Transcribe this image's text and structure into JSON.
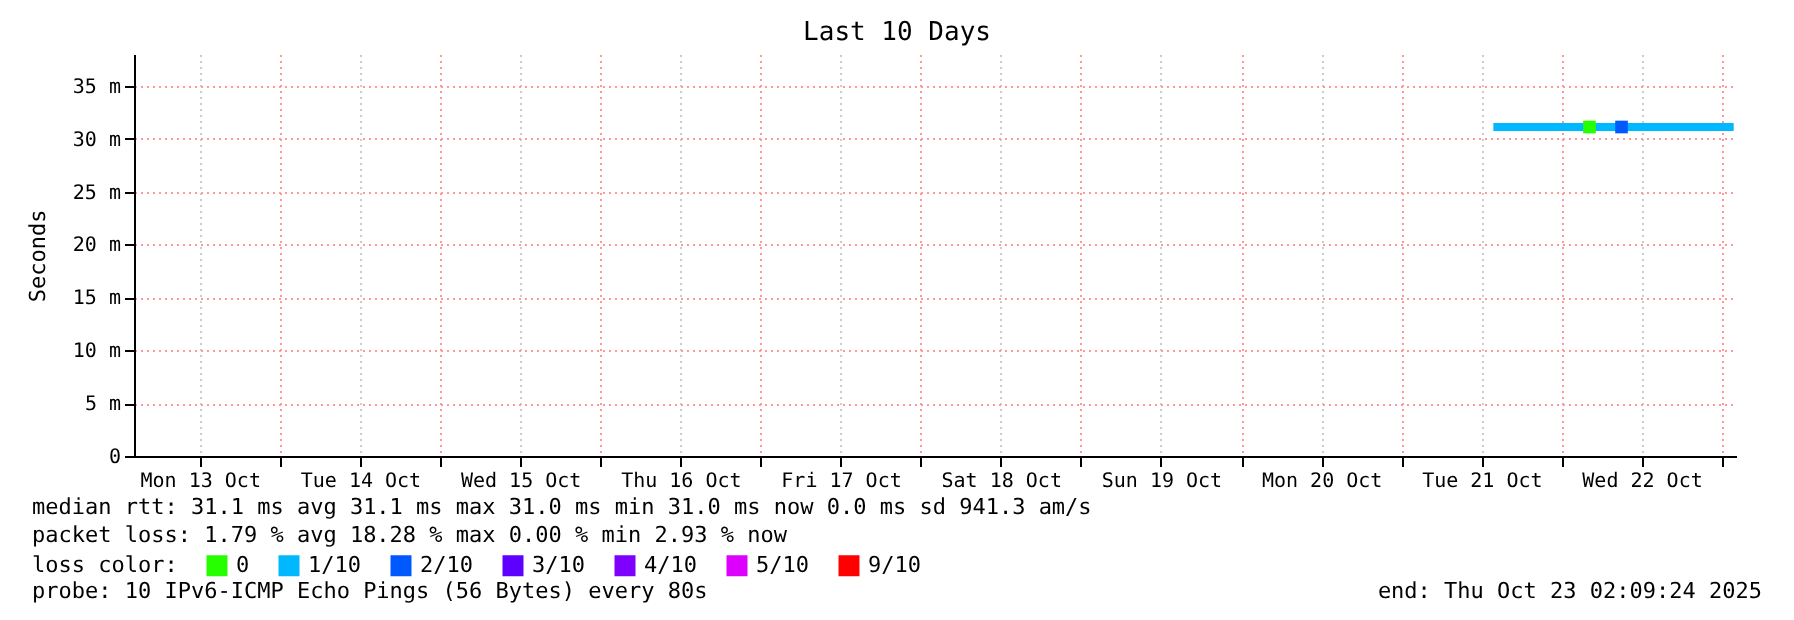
{
  "chart_data": {
    "type": "line",
    "title": "Last 10 Days",
    "ylabel": "Seconds",
    "legend_title": "loss color:",
    "legend": "bottom",
    "grid": true,
    "marker": "none",
    "line_style": "solid",
    "xlim": [
      "2025-10-13T02:09",
      "2025-10-23T02:09"
    ],
    "xticks": [
      {
        "value": "2025-10-13T12:00",
        "label": "Mon 13 Oct"
      },
      {
        "value": "2025-10-14T12:00",
        "label": "Tue 14 Oct"
      },
      {
        "value": "2025-10-15T12:00",
        "label": "Wed 15 Oct"
      },
      {
        "value": "2025-10-16T12:00",
        "label": "Thu 16 Oct"
      },
      {
        "value": "2025-10-17T12:00",
        "label": "Fri 17 Oct"
      },
      {
        "value": "2025-10-18T12:00",
        "label": "Sat 18 Oct"
      },
      {
        "value": "2025-10-19T12:00",
        "label": "Sun 19 Oct"
      },
      {
        "value": "2025-10-20T12:00",
        "label": "Mon 20 Oct"
      },
      {
        "value": "2025-10-21T12:00",
        "label": "Tue 21 Oct"
      },
      {
        "value": "2025-10-22T12:00",
        "label": "Wed 22 Oct"
      },
      {
        "value": "2025-10-14T00:00",
        "label": null
      },
      {
        "value": "2025-10-15T00:00",
        "label": null
      },
      {
        "value": "2025-10-16T00:00",
        "label": null
      },
      {
        "value": "2025-10-17T00:00",
        "label": null
      },
      {
        "value": "2025-10-18T00:00",
        "label": null
      },
      {
        "value": "2025-10-19T00:00",
        "label": null
      },
      {
        "value": "2025-10-20T00:00",
        "label": null
      },
      {
        "value": "2025-10-21T00:00",
        "label": null
      },
      {
        "value": "2025-10-22T00:00",
        "label": null
      },
      {
        "value": "2025-10-23T00:00",
        "label": null
      }
    ],
    "ylim": [
      0,
      38
    ],
    "yticks": [
      0,
      {
        "value": 5,
        "label": "5 m"
      },
      {
        "value": 10,
        "label": "10 m"
      },
      {
        "value": 15,
        "label": "15 m"
      },
      {
        "value": 20,
        "label": "20 m"
      },
      {
        "value": 25,
        "label": "25 m"
      },
      {
        "value": 30,
        "label": "30 m"
      },
      {
        "value": 35,
        "label": "35 m"
      }
    ],
    "series": [
      {
        "name": "0",
        "color": "#26ff00",
        "type": "scatter",
        "marker": "square",
        "x": [
          "2025-10-22T04:12"
        ],
        "values": [
          31.1
        ]
      },
      {
        "name": "1/10",
        "color": "#00b8ff",
        "x": [
          "2025-10-21T13:48",
          "2025-10-21T18:00",
          "2025-10-21T22:00",
          "2025-10-22T02:00",
          "2025-10-22T06:00",
          "2025-10-22T10:00",
          "2025-10-22T14:00",
          "2025-10-22T18:00",
          "2025-10-22T22:00",
          "2025-10-23T01:48"
        ],
        "values": [
          31.1,
          31.1,
          31.1,
          31.1,
          31.1,
          31.1,
          31.1,
          31.1,
          31.1,
          31.1
        ]
      },
      {
        "name": "2/10",
        "color": "#0059ff",
        "type": "scatter",
        "marker": "square",
        "x": [
          "2025-10-22T09:00"
        ],
        "values": [
          31.1
        ]
      },
      {
        "name": "3/10",
        "color": "#5e00ff"
      },
      {
        "name": "4/10",
        "color": "#7e00ff"
      },
      {
        "name": "5/10",
        "color": "#dd00ff"
      },
      {
        "name": "9/10",
        "color": "#ff0000"
      }
    ],
    "annotations": [
      "median rtt:  31.1 ms avg  31.1 ms max  31.0 ms min  31.0 ms now  0.0 ms sd  941.3   am/s",
      "packet loss: 1.79 % avg  18.28 % max  0.00 % min  2.93 % now",
      "probe:       10 IPv6-ICMP Echo Pings (56 Bytes) every 80s",
      "end: Thu Oct 23 02:09:24 2025"
    ]
  }
}
